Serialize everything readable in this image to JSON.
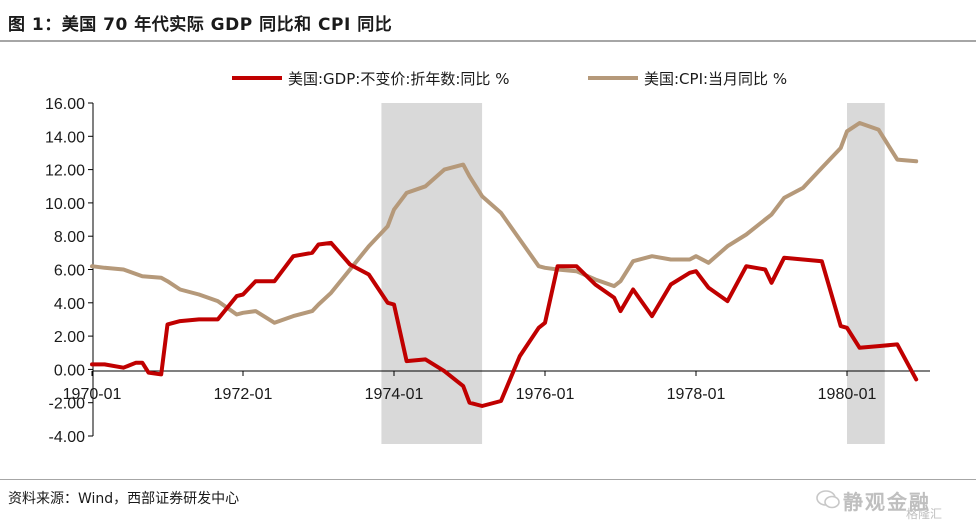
{
  "title": "图 1：美国 70 年代实际 GDP 同比和 CPI 同比",
  "source": "资料来源：Wind，西部证券研发中心",
  "watermark": {
    "text": "静观金融",
    "badge": "格隆汇"
  },
  "colors": {
    "gdp": "#c00000",
    "cpi": "#b5997a",
    "recession": "#d9d9d9",
    "axis": "#000000"
  },
  "chart_data": {
    "type": "line",
    "legend_position": "top",
    "grid": false,
    "xlim": [
      "1970-01",
      "1980-12"
    ],
    "ylim": [
      -4,
      16
    ],
    "yticks": [
      "16.00",
      "14.00",
      "12.00",
      "10.00",
      "8.00",
      "6.00",
      "4.00",
      "2.00",
      "0.00",
      "-2.00",
      "-4.00"
    ],
    "xticks": [
      "1970-01",
      "1972-01",
      "1974-01",
      "1976-01",
      "1978-01",
      "1980-01"
    ],
    "recessions": [
      [
        "1973-11",
        "1975-03"
      ],
      [
        "1980-01",
        "1980-07"
      ]
    ],
    "series": [
      {
        "name": "美国:GDP:不变价:折年数:同比 %",
        "color": "#c00000",
        "x": [
          "1970-01",
          "1970-03",
          "1970-06",
          "1970-08",
          "1970-09",
          "1970-10",
          "1970-12",
          "1971-01",
          "1971-03",
          "1971-06",
          "1971-09",
          "1971-12",
          "1972-01",
          "1972-03",
          "1972-06",
          "1972-09",
          "1972-12",
          "1973-01",
          "1973-03",
          "1973-06",
          "1973-09",
          "1973-12",
          "1974-01",
          "1974-03",
          "1974-06",
          "1974-09",
          "1974-12",
          "1975-01",
          "1975-03",
          "1975-06",
          "1975-09",
          "1975-12",
          "1976-01",
          "1976-03",
          "1976-06",
          "1976-09",
          "1976-12",
          "1977-01",
          "1977-03",
          "1977-06",
          "1977-09",
          "1977-12",
          "1978-01",
          "1978-03",
          "1978-06",
          "1978-09",
          "1978-12",
          "1979-01",
          "1979-03",
          "1979-06",
          "1979-09",
          "1979-12",
          "1980-01",
          "1980-03",
          "1980-06",
          "1980-09",
          "1980-12"
        ],
        "values": [
          0.3,
          0.3,
          0.1,
          0.4,
          0.4,
          -0.2,
          -0.3,
          2.7,
          2.9,
          3.0,
          3.0,
          4.4,
          4.5,
          5.3,
          5.3,
          6.8,
          7.0,
          7.5,
          7.6,
          6.3,
          5.7,
          4.0,
          3.9,
          0.5,
          0.6,
          -0.1,
          -1.0,
          -2.0,
          -2.2,
          -1.9,
          0.8,
          2.5,
          2.8,
          6.2,
          6.2,
          5.1,
          4.3,
          3.5,
          4.8,
          3.2,
          5.1,
          5.8,
          5.9,
          4.9,
          4.1,
          6.2,
          6.0,
          5.2,
          6.7,
          6.6,
          6.5,
          2.6,
          2.5,
          1.3,
          1.4,
          1.5,
          -0.6
        ]
      },
      {
        "name": "美国:CPI:当月同比 %",
        "color": "#b5997a",
        "x": [
          "1970-01",
          "1970-03",
          "1970-06",
          "1970-09",
          "1970-12",
          "1971-01",
          "1971-03",
          "1971-06",
          "1971-09",
          "1971-12",
          "1972-01",
          "1972-03",
          "1972-06",
          "1972-09",
          "1972-12",
          "1973-01",
          "1973-03",
          "1973-06",
          "1973-09",
          "1973-12",
          "1974-01",
          "1974-03",
          "1974-06",
          "1974-09",
          "1974-12",
          "1975-01",
          "1975-03",
          "1975-06",
          "1975-09",
          "1975-12",
          "1976-01",
          "1976-03",
          "1976-06",
          "1976-09",
          "1976-12",
          "1977-01",
          "1977-03",
          "1977-06",
          "1977-09",
          "1977-12",
          "1978-01",
          "1978-03",
          "1978-06",
          "1978-09",
          "1978-12",
          "1979-01",
          "1979-03",
          "1979-06",
          "1979-09",
          "1979-12",
          "1980-01",
          "1980-03",
          "1980-06",
          "1980-09",
          "1980-12"
        ],
        "values": [
          6.2,
          6.1,
          6.0,
          5.6,
          5.5,
          5.3,
          4.8,
          4.5,
          4.1,
          3.3,
          3.4,
          3.5,
          2.8,
          3.2,
          3.5,
          3.9,
          4.6,
          6.0,
          7.4,
          8.6,
          9.6,
          10.6,
          11.0,
          12.0,
          12.3,
          11.6,
          10.4,
          9.4,
          7.8,
          6.2,
          6.1,
          6.0,
          5.9,
          5.4,
          5.0,
          5.3,
          6.5,
          6.8,
          6.6,
          6.6,
          6.8,
          6.4,
          7.4,
          8.1,
          9.0,
          9.3,
          10.3,
          10.9,
          12.1,
          13.3,
          14.3,
          14.8,
          14.4,
          12.6,
          12.5
        ]
      }
    ]
  }
}
